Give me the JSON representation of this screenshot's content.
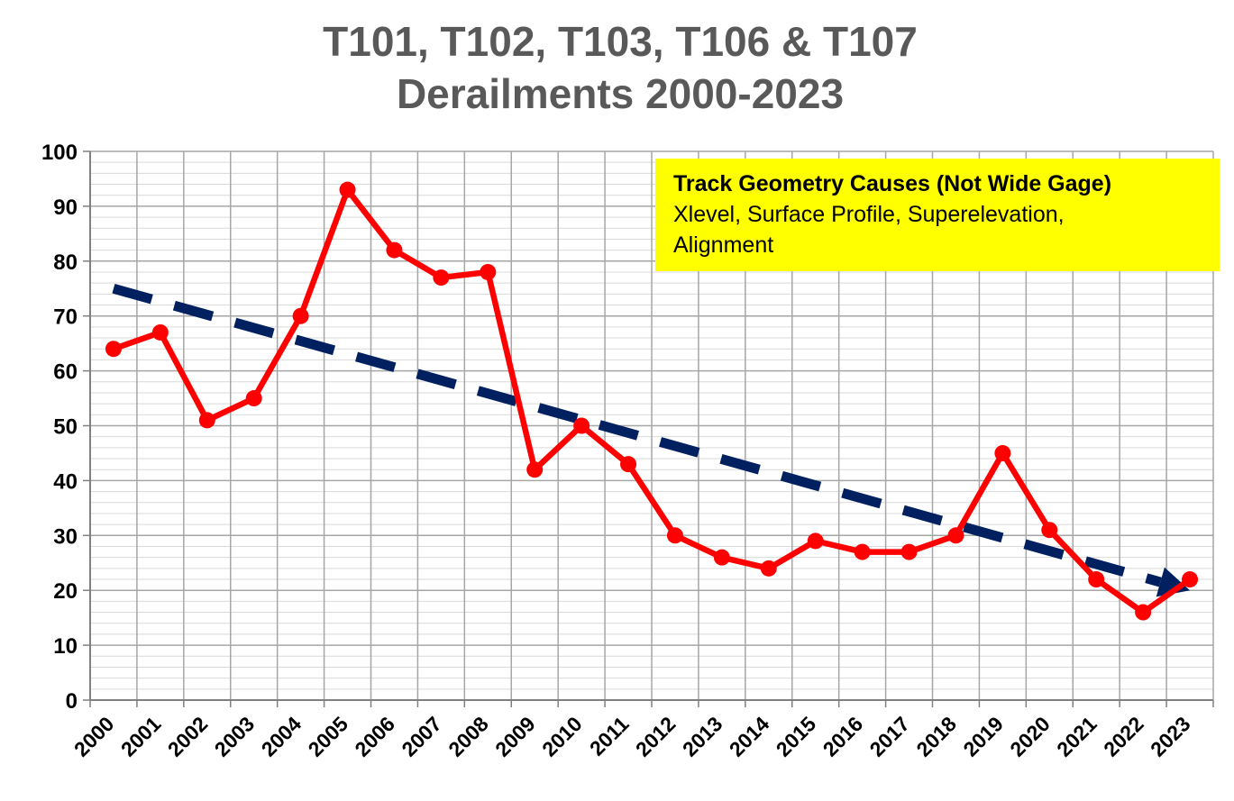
{
  "chart_data": {
    "type": "line",
    "title_lines": [
      "T101, T102, T103, T106 & T107",
      "Derailments 2000-2023"
    ],
    "categories": [
      "2000",
      "2001",
      "2002",
      "2003",
      "2004",
      "2005",
      "2006",
      "2007",
      "2008",
      "2009",
      "2010",
      "2011",
      "2012",
      "2013",
      "2014",
      "2015",
      "2016",
      "2017",
      "2018",
      "2019",
      "2020",
      "2021",
      "2022",
      "2023"
    ],
    "series": [
      {
        "values": [
          64,
          67,
          51,
          55,
          70,
          93,
          82,
          77,
          78,
          42,
          50,
          43,
          30,
          26,
          24,
          29,
          27,
          27,
          30,
          45,
          31,
          22,
          16,
          22
        ],
        "color": "#ff0000",
        "marker": "circle"
      }
    ],
    "trendline": {
      "style": "dashed-arrow",
      "color": "#002060",
      "start": {
        "x": "2000",
        "y": 75
      },
      "end": {
        "x": "2023",
        "y": 20
      }
    },
    "yticks": [
      0,
      10,
      20,
      30,
      40,
      50,
      60,
      70,
      80,
      90,
      100
    ],
    "ylim": [
      0,
      100
    ],
    "grid": true,
    "annotation": {
      "title": "Track Geometry Causes (Not Wide Gage)",
      "lines": [
        "Xlevel, Surface Profile, Superelevation,",
        "Alignment"
      ],
      "background": "#ffff00",
      "placement": "top-right"
    }
  }
}
